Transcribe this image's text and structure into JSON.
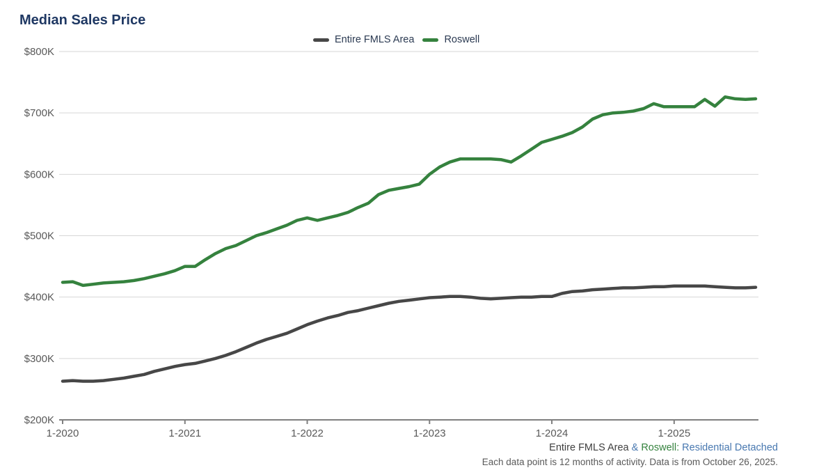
{
  "title": "Median Sales Price",
  "legend": [
    {
      "label": "Entire FMLS Area",
      "color": "#474747"
    },
    {
      "label": "Roswell",
      "color": "#35823e"
    }
  ],
  "footer": {
    "series1": "Entire FMLS Area",
    "amp": " & ",
    "series2": "Roswell",
    "colon": ": ",
    "property_type": "Residential Detached",
    "note": "Each data point is 12 months of activity. Data is from October 26, 2025."
  },
  "colors": {
    "title": "#1f3863",
    "gridline": "#d6d6d6",
    "axis_line": "#7f7f7f",
    "tick_text": "#595959",
    "series_entire_fmls": "#474747",
    "series_roswell": "#35823e"
  },
  "chart_data": {
    "type": "line",
    "title": "Median Sales Price",
    "values_unit": "USD thousands",
    "frequency": "monthly",
    "x_start_month": "1-2020",
    "x_end_month": "9-2025",
    "n_points": 69,
    "ylim_thousands": [
      200,
      800
    ],
    "grid": "horizontal",
    "legend_position": "top-center",
    "x_tick_labels": [
      "1-2020",
      "1-2021",
      "1-2022",
      "1-2023",
      "1-2024",
      "1-2025"
    ],
    "x_tick_month_indices": [
      0,
      12,
      24,
      36,
      48,
      60
    ],
    "y_tick_labels": [
      "$800K",
      "$700K",
      "$600K",
      "$500K",
      "$400K",
      "$300K",
      "$200K"
    ],
    "y_tick_values_thousands": [
      800,
      700,
      600,
      500,
      400,
      300,
      200
    ],
    "series": [
      {
        "name": "Entire FMLS Area",
        "color": "#474747",
        "values_thousands": [
          263,
          264,
          263,
          263,
          264,
          266,
          268,
          271,
          274,
          279,
          283,
          287,
          290,
          292,
          296,
          300,
          305,
          311,
          318,
          325,
          331,
          336,
          341,
          348,
          355,
          361,
          366,
          370,
          375,
          378,
          382,
          386,
          390,
          393,
          395,
          397,
          399,
          400,
          401,
          401,
          400,
          398,
          397,
          398,
          399,
          400,
          400,
          401,
          401,
          406,
          409,
          410,
          412,
          413,
          414,
          415,
          415,
          416,
          417,
          417,
          418,
          418,
          418,
          418,
          417,
          416,
          415,
          415,
          416
        ]
      },
      {
        "name": "Roswell",
        "color": "#35823e",
        "values_thousands": [
          424,
          425,
          419,
          421,
          423,
          424,
          425,
          427,
          430,
          434,
          438,
          443,
          450,
          450,
          461,
          471,
          479,
          484,
          492,
          500,
          505,
          511,
          517,
          525,
          529,
          525,
          529,
          533,
          538,
          546,
          553,
          567,
          574,
          577,
          580,
          584,
          600,
          612,
          620,
          625,
          625,
          625,
          625,
          624,
          620,
          630,
          641,
          652,
          657,
          662,
          668,
          677,
          690,
          697,
          700,
          701,
          703,
          707,
          715,
          710,
          710,
          710,
          710,
          722,
          711,
          726,
          723,
          722,
          723
        ]
      }
    ]
  }
}
